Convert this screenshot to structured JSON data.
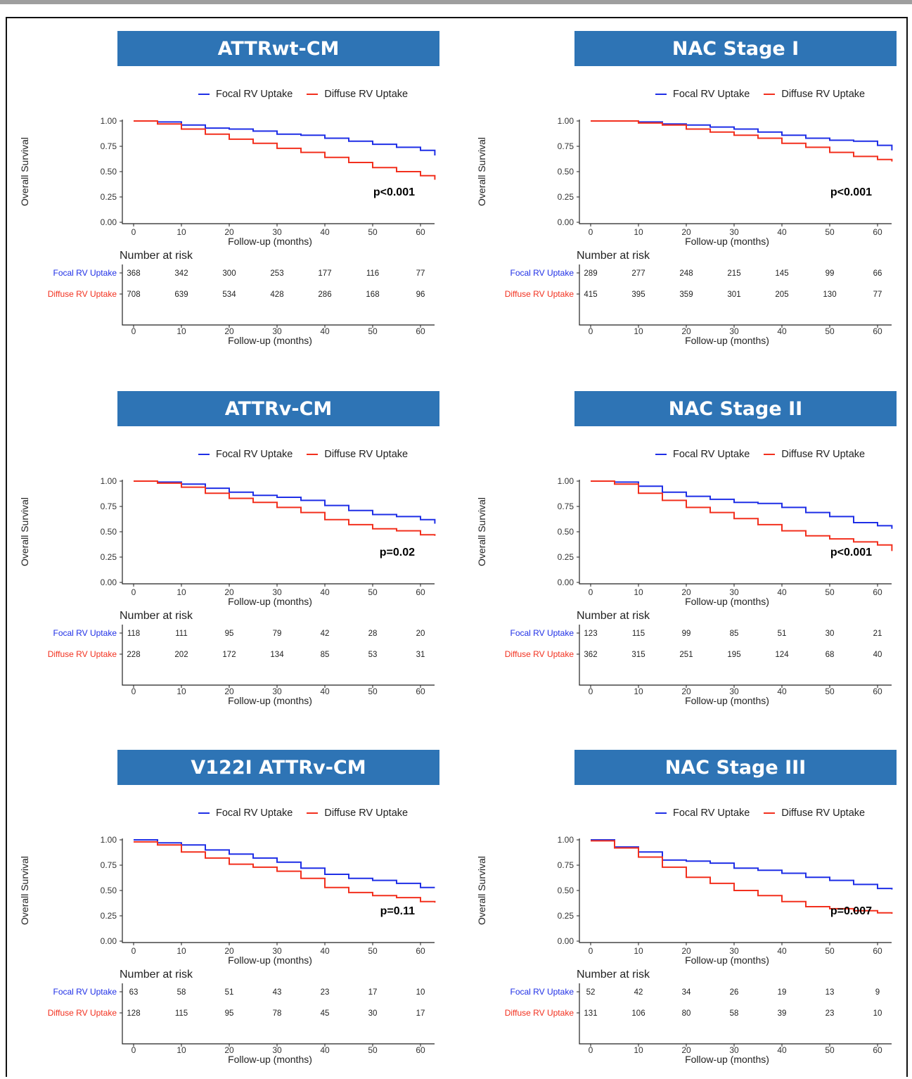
{
  "colors": {
    "focal": "#1f2fe6",
    "diffuse": "#f2301e",
    "banner": "#2e74b5"
  },
  "common": {
    "ylabel": "Overall Survival",
    "xlabel": "Follow-up (months)",
    "risk_title": "Number at risk",
    "legend_focal": "Focal RV Uptake",
    "legend_diffuse": "Diffuse RV Uptake",
    "yticks": [
      "0.00",
      "0.25",
      "0.50",
      "0.75",
      "1.00"
    ],
    "xticks": [
      "0",
      "10",
      "20",
      "30",
      "40",
      "50",
      "60"
    ]
  },
  "chart_data": [
    {
      "type": "line",
      "title": "ATTRwt-CM",
      "pvalue": "p<0.001",
      "xlabel": "Follow-up (months)",
      "ylabel": "Overall Survival",
      "xlim": [
        0,
        63
      ],
      "ylim": [
        0,
        1
      ],
      "series": [
        {
          "name": "Focal RV Uptake",
          "x": [
            0,
            5,
            10,
            15,
            20,
            25,
            30,
            35,
            40,
            45,
            50,
            55,
            60,
            63
          ],
          "y": [
            1.0,
            0.99,
            0.96,
            0.93,
            0.92,
            0.9,
            0.87,
            0.86,
            0.83,
            0.8,
            0.77,
            0.74,
            0.71,
            0.66
          ]
        },
        {
          "name": "Diffuse RV Uptake",
          "x": [
            0,
            5,
            10,
            15,
            20,
            25,
            30,
            35,
            40,
            45,
            50,
            55,
            60,
            63
          ],
          "y": [
            1.0,
            0.97,
            0.92,
            0.87,
            0.82,
            0.78,
            0.73,
            0.69,
            0.64,
            0.59,
            0.54,
            0.5,
            0.46,
            0.42
          ]
        }
      ],
      "risk": {
        "times": [
          "0",
          "10",
          "20",
          "30",
          "40",
          "50",
          "60"
        ],
        "Focal RV Uptake": [
          "368",
          "342",
          "300",
          "253",
          "177",
          "116",
          "77"
        ],
        "Diffuse RV Uptake": [
          "708",
          "639",
          "534",
          "428",
          "286",
          "168",
          "96"
        ]
      }
    },
    {
      "type": "line",
      "title": "NAC Stage I",
      "pvalue": "p<0.001",
      "xlabel": "Follow-up (months)",
      "ylabel": "Overall Survival",
      "xlim": [
        0,
        63
      ],
      "ylim": [
        0,
        1
      ],
      "series": [
        {
          "name": "Focal RV Uptake",
          "x": [
            0,
            5,
            10,
            15,
            20,
            25,
            30,
            35,
            40,
            45,
            50,
            55,
            60,
            63
          ],
          "y": [
            1.0,
            1.0,
            0.99,
            0.97,
            0.96,
            0.94,
            0.92,
            0.89,
            0.86,
            0.83,
            0.81,
            0.8,
            0.76,
            0.71
          ]
        },
        {
          "name": "Diffuse RV Uptake",
          "x": [
            0,
            5,
            10,
            15,
            20,
            25,
            30,
            35,
            40,
            45,
            50,
            55,
            60,
            63
          ],
          "y": [
            1.0,
            1.0,
            0.98,
            0.96,
            0.92,
            0.89,
            0.86,
            0.83,
            0.78,
            0.74,
            0.69,
            0.65,
            0.62,
            0.6
          ]
        }
      ],
      "risk": {
        "times": [
          "0",
          "10",
          "20",
          "30",
          "40",
          "50",
          "60"
        ],
        "Focal RV Uptake": [
          "289",
          "277",
          "248",
          "215",
          "145",
          "99",
          "66"
        ],
        "Diffuse RV Uptake": [
          "415",
          "395",
          "359",
          "301",
          "205",
          "130",
          "77"
        ]
      }
    },
    {
      "type": "line",
      "title": "ATTRv-CM",
      "pvalue": "p=0.02",
      "xlabel": "Follow-up (months)",
      "ylabel": "Overall Survival",
      "xlim": [
        0,
        63
      ],
      "ylim": [
        0,
        1
      ],
      "series": [
        {
          "name": "Focal RV Uptake",
          "x": [
            0,
            5,
            10,
            15,
            20,
            25,
            30,
            35,
            40,
            45,
            50,
            55,
            60,
            63
          ],
          "y": [
            1.0,
            0.99,
            0.97,
            0.93,
            0.89,
            0.86,
            0.84,
            0.81,
            0.76,
            0.71,
            0.67,
            0.65,
            0.62,
            0.58
          ]
        },
        {
          "name": "Diffuse RV Uptake",
          "x": [
            0,
            5,
            10,
            15,
            20,
            25,
            30,
            35,
            40,
            45,
            50,
            55,
            60,
            63
          ],
          "y": [
            1.0,
            0.98,
            0.94,
            0.88,
            0.83,
            0.79,
            0.74,
            0.69,
            0.62,
            0.57,
            0.53,
            0.51,
            0.47,
            0.46
          ]
        }
      ],
      "risk": {
        "times": [
          "0",
          "10",
          "20",
          "30",
          "40",
          "50",
          "60"
        ],
        "Focal RV Uptake": [
          "118",
          "111",
          "95",
          "79",
          "42",
          "28",
          "20"
        ],
        "Diffuse RV Uptake": [
          "228",
          "202",
          "172",
          "134",
          "85",
          "53",
          "31"
        ]
      }
    },
    {
      "type": "line",
      "title": "NAC Stage II",
      "pvalue": "p<0.001",
      "xlabel": "Follow-up (months)",
      "ylabel": "Overall Survival",
      "xlim": [
        0,
        63
      ],
      "ylim": [
        0,
        1
      ],
      "series": [
        {
          "name": "Focal RV Uptake",
          "x": [
            0,
            5,
            10,
            15,
            20,
            25,
            30,
            35,
            40,
            45,
            50,
            55,
            60,
            63
          ],
          "y": [
            1.0,
            0.99,
            0.95,
            0.89,
            0.85,
            0.82,
            0.79,
            0.78,
            0.74,
            0.69,
            0.65,
            0.59,
            0.56,
            0.53
          ]
        },
        {
          "name": "Diffuse RV Uptake",
          "x": [
            0,
            5,
            10,
            15,
            20,
            25,
            30,
            35,
            40,
            45,
            50,
            55,
            60,
            63
          ],
          "y": [
            1.0,
            0.97,
            0.88,
            0.81,
            0.74,
            0.69,
            0.63,
            0.57,
            0.51,
            0.46,
            0.43,
            0.4,
            0.37,
            0.31
          ]
        }
      ],
      "risk": {
        "times": [
          "0",
          "10",
          "20",
          "30",
          "40",
          "50",
          "60"
        ],
        "Focal RV Uptake": [
          "123",
          "115",
          "99",
          "85",
          "51",
          "30",
          "21"
        ],
        "Diffuse RV Uptake": [
          "362",
          "315",
          "251",
          "195",
          "124",
          "68",
          "40"
        ]
      }
    },
    {
      "type": "line",
      "title": "V122I ATTRv-CM",
      "pvalue": "p=0.11",
      "xlabel": "Follow-up (months)",
      "ylabel": "Overall Survival",
      "xlim": [
        0,
        63
      ],
      "ylim": [
        0,
        1
      ],
      "series": [
        {
          "name": "Focal RV Uptake",
          "x": [
            0,
            5,
            10,
            15,
            20,
            25,
            30,
            35,
            40,
            45,
            50,
            55,
            60,
            63
          ],
          "y": [
            1.0,
            0.97,
            0.95,
            0.9,
            0.86,
            0.82,
            0.78,
            0.72,
            0.66,
            0.62,
            0.6,
            0.57,
            0.53,
            0.53
          ]
        },
        {
          "name": "Diffuse RV Uptake",
          "x": [
            0,
            5,
            10,
            15,
            20,
            25,
            30,
            35,
            40,
            45,
            50,
            55,
            60,
            63
          ],
          "y": [
            0.98,
            0.95,
            0.88,
            0.82,
            0.76,
            0.73,
            0.69,
            0.62,
            0.53,
            0.48,
            0.45,
            0.43,
            0.39,
            0.38
          ]
        }
      ],
      "risk": {
        "times": [
          "0",
          "10",
          "20",
          "30",
          "40",
          "50",
          "60"
        ],
        "Focal RV Uptake": [
          "63",
          "58",
          "51",
          "43",
          "23",
          "17",
          "10"
        ],
        "Diffuse RV Uptake": [
          "128",
          "115",
          "95",
          "78",
          "45",
          "30",
          "17"
        ]
      }
    },
    {
      "type": "line",
      "title": "NAC Stage III",
      "pvalue": "p=0.007",
      "xlabel": "Follow-up (months)",
      "ylabel": "Overall Survival",
      "xlim": [
        0,
        63
      ],
      "ylim": [
        0,
        1
      ],
      "series": [
        {
          "name": "Focal RV Uptake",
          "x": [
            0,
            5,
            10,
            15,
            20,
            25,
            30,
            35,
            40,
            45,
            50,
            55,
            60,
            63
          ],
          "y": [
            1.0,
            0.93,
            0.88,
            0.8,
            0.79,
            0.77,
            0.72,
            0.7,
            0.67,
            0.63,
            0.6,
            0.56,
            0.52,
            0.51
          ]
        },
        {
          "name": "Diffuse RV Uptake",
          "x": [
            0,
            5,
            10,
            15,
            20,
            25,
            30,
            35,
            40,
            45,
            50,
            55,
            60,
            63
          ],
          "y": [
            0.99,
            0.92,
            0.83,
            0.73,
            0.63,
            0.57,
            0.5,
            0.45,
            0.39,
            0.34,
            0.32,
            0.3,
            0.28,
            0.27
          ]
        }
      ],
      "risk": {
        "times": [
          "0",
          "10",
          "20",
          "30",
          "40",
          "50",
          "60"
        ],
        "Focal RV Uptake": [
          "52",
          "42",
          "34",
          "26",
          "19",
          "13",
          "9"
        ],
        "Diffuse RV Uptake": [
          "131",
          "106",
          "80",
          "58",
          "39",
          "23",
          "10"
        ]
      }
    }
  ]
}
